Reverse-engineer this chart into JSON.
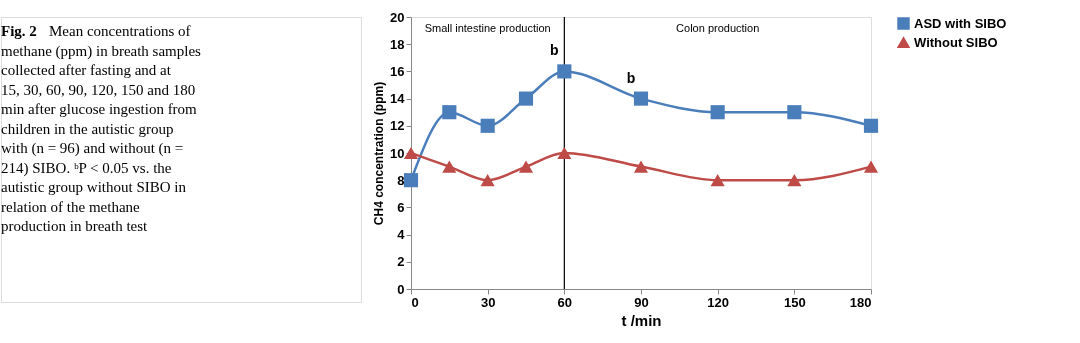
{
  "chart_data": {
    "type": "line",
    "title": "Fig. 2",
    "annotations": [
      "Mean concentrations of methane (ppm) in breath samples collected after fasting and at 15, 30, 60, 90, 120, 150 and 180 min after glucose ingestion from children in the autistic group with (n = 96) and without (n = 214) SIBO. ᵇP < 0.05 vs. the autistic group without SIBO in relation of the methane production in breath test",
      "Small intestine production",
      "Colon production",
      {
        "text": "b",
        "x": 60,
        "y": 16
      },
      {
        "text": "b",
        "x": 90,
        "y": 14
      }
    ],
    "x": [
      0,
      15,
      30,
      45,
      60,
      90,
      120,
      150,
      180
    ],
    "series": [
      {
        "name": "ASD with SIBO",
        "color": "#4a7ebb",
        "marker": "square",
        "values": [
          8,
          13,
          12,
          14,
          16,
          14,
          13,
          13,
          12
        ]
      },
      {
        "name": "Without SIBO",
        "color": "#be4b48",
        "marker": "triangle",
        "values": [
          10,
          9,
          8,
          9,
          10,
          9,
          8,
          8,
          9
        ]
      }
    ],
    "xlabel": "t /min",
    "ylabel": "CH4 concentration (ppm)",
    "xlim": [
      0,
      180
    ],
    "xticks": [
      0,
      30,
      60,
      90,
      120,
      150,
      180
    ],
    "ylim": [
      0,
      20
    ],
    "yticks": [
      0,
      2,
      4,
      6,
      8,
      10,
      12,
      14,
      16,
      18,
      20
    ],
    "ref_lines": [
      {
        "axis": "x",
        "value": 60,
        "color": "#000000"
      }
    ],
    "grid": false,
    "legend": "right",
    "line_style": "solid"
  }
}
